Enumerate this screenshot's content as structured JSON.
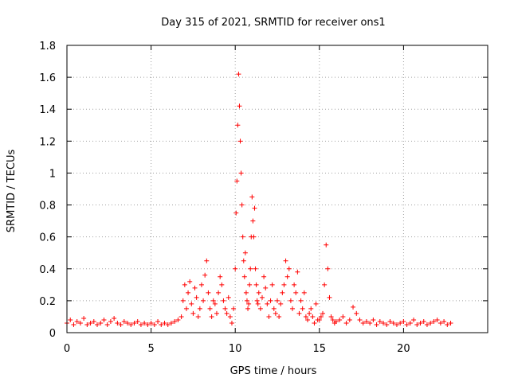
{
  "chart_data": {
    "type": "scatter",
    "title": "Day 315 of 2021, SRMTID for receiver ons1",
    "xlabel": "GPS time / hours",
    "ylabel": "SRMTID / TECUs",
    "xlim": [
      0,
      25
    ],
    "ylim": [
      0,
      1.8
    ],
    "x_ticks": [
      0,
      5,
      10,
      15,
      20
    ],
    "y_ticks": [
      0,
      0.2,
      0.4,
      0.6,
      0.8,
      1,
      1.2,
      1.4,
      1.6,
      1.8
    ],
    "x_tick_labels": [
      "0",
      "5",
      "10",
      "15",
      "20"
    ],
    "y_tick_labels": [
      "0",
      "0.2",
      "0.4",
      "0.6",
      "0.8",
      "1",
      "1.2",
      "1.4",
      "1.6",
      "1.8"
    ],
    "grid": true,
    "marker": "plus",
    "series": [
      {
        "name": "SRMTID ons1",
        "color": "#ff0000",
        "x": [
          0.0,
          0.2,
          0.4,
          0.6,
          0.8,
          1.0,
          1.2,
          1.4,
          1.6,
          1.8,
          2.0,
          2.2,
          2.4,
          2.6,
          2.8,
          3.0,
          3.2,
          3.4,
          3.6,
          3.8,
          4.0,
          4.2,
          4.4,
          4.6,
          4.8,
          5.0,
          5.2,
          5.4,
          5.6,
          5.8,
          6.0,
          6.2,
          6.4,
          6.6,
          6.8,
          6.9,
          7.0,
          7.1,
          7.2,
          7.3,
          7.4,
          7.5,
          7.6,
          7.7,
          7.8,
          7.9,
          8.0,
          8.1,
          8.2,
          8.3,
          8.4,
          8.5,
          8.6,
          8.7,
          8.8,
          8.9,
          9.0,
          9.1,
          9.2,
          9.3,
          9.4,
          9.5,
          9.6,
          9.7,
          9.8,
          9.9,
          10.0,
          10.05,
          10.1,
          10.15,
          10.2,
          10.25,
          10.3,
          10.35,
          10.4,
          10.45,
          10.5,
          10.55,
          10.6,
          10.65,
          10.7,
          10.75,
          10.8,
          10.85,
          10.9,
          10.95,
          11.0,
          11.05,
          11.1,
          11.15,
          11.2,
          11.25,
          11.3,
          11.35,
          11.4,
          11.5,
          11.6,
          11.7,
          11.8,
          11.9,
          12.0,
          12.1,
          12.2,
          12.3,
          12.4,
          12.5,
          12.6,
          12.7,
          12.8,
          12.9,
          13.0,
          13.1,
          13.2,
          13.3,
          13.4,
          13.5,
          13.6,
          13.7,
          13.8,
          13.9,
          14.0,
          14.1,
          14.2,
          14.3,
          14.4,
          14.5,
          14.6,
          14.7,
          14.8,
          14.9,
          15.0,
          15.1,
          15.2,
          15.3,
          15.4,
          15.5,
          15.6,
          15.7,
          15.8,
          15.9,
          16.0,
          16.2,
          16.4,
          16.6,
          16.8,
          17.0,
          17.2,
          17.4,
          17.6,
          17.8,
          18.0,
          18.2,
          18.4,
          18.6,
          18.8,
          19.0,
          19.2,
          19.4,
          19.6,
          19.8,
          20.0,
          20.2,
          20.4,
          20.6,
          20.8,
          21.0,
          21.2,
          21.4,
          21.6,
          21.8,
          22.0,
          22.2,
          22.4,
          22.6,
          22.8
        ],
        "y": [
          0.06,
          0.08,
          0.05,
          0.07,
          0.06,
          0.09,
          0.05,
          0.06,
          0.07,
          0.05,
          0.06,
          0.08,
          0.05,
          0.07,
          0.09,
          0.06,
          0.05,
          0.07,
          0.06,
          0.05,
          0.06,
          0.07,
          0.05,
          0.06,
          0.05,
          0.06,
          0.05,
          0.07,
          0.05,
          0.06,
          0.05,
          0.06,
          0.07,
          0.08,
          0.1,
          0.2,
          0.3,
          0.15,
          0.25,
          0.32,
          0.18,
          0.12,
          0.28,
          0.22,
          0.1,
          0.15,
          0.3,
          0.2,
          0.36,
          0.45,
          0.25,
          0.15,
          0.1,
          0.2,
          0.18,
          0.12,
          0.25,
          0.35,
          0.3,
          0.2,
          0.15,
          0.12,
          0.22,
          0.1,
          0.06,
          0.15,
          0.4,
          0.75,
          0.95,
          1.3,
          1.62,
          1.42,
          1.2,
          1.0,
          0.8,
          0.6,
          0.45,
          0.35,
          0.5,
          0.25,
          0.2,
          0.15,
          0.18,
          0.3,
          0.4,
          0.6,
          0.85,
          0.7,
          0.6,
          0.78,
          0.4,
          0.3,
          0.2,
          0.18,
          0.25,
          0.15,
          0.22,
          0.35,
          0.28,
          0.18,
          0.1,
          0.2,
          0.3,
          0.15,
          0.12,
          0.2,
          0.1,
          0.18,
          0.25,
          0.3,
          0.45,
          0.35,
          0.4,
          0.2,
          0.15,
          0.3,
          0.25,
          0.38,
          0.12,
          0.2,
          0.15,
          0.25,
          0.1,
          0.08,
          0.12,
          0.15,
          0.1,
          0.06,
          0.18,
          0.08,
          0.08,
          0.1,
          0.12,
          0.3,
          0.55,
          0.4,
          0.22,
          0.1,
          0.08,
          0.06,
          0.07,
          0.08,
          0.1,
          0.06,
          0.08,
          0.16,
          0.12,
          0.08,
          0.06,
          0.07,
          0.06,
          0.08,
          0.05,
          0.07,
          0.06,
          0.05,
          0.07,
          0.06,
          0.05,
          0.06,
          0.07,
          0.05,
          0.06,
          0.08,
          0.05,
          0.06,
          0.07,
          0.05,
          0.06,
          0.07,
          0.08,
          0.06,
          0.07,
          0.05,
          0.06
        ]
      }
    ]
  }
}
